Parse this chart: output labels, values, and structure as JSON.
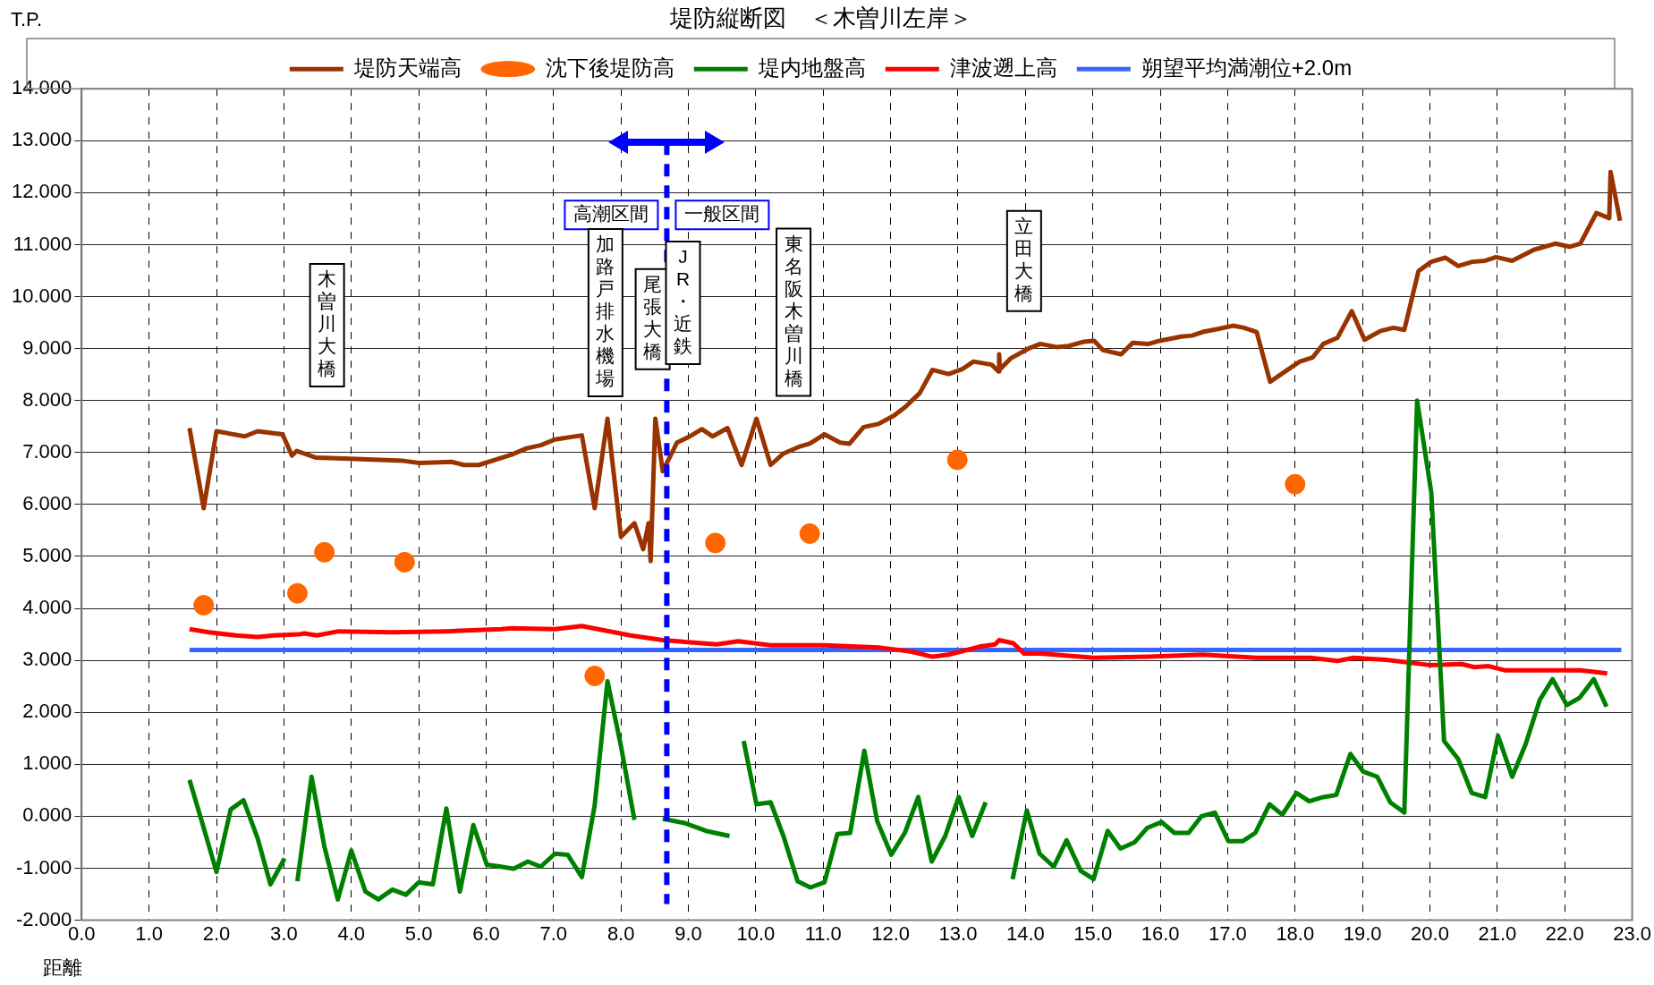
{
  "chart_data": {
    "type": "line",
    "title": "堤防縦断図　＜木曽川左岸＞",
    "xlabel": "距離",
    "ylabel": "T.P.",
    "xlim": [
      0,
      23
    ],
    "ylim": [
      -2,
      14
    ],
    "xticks": [
      {
        "value": 0,
        "label": "0.0"
      },
      {
        "value": 1,
        "label": "1.0"
      },
      {
        "value": 2,
        "label": "2.0"
      },
      {
        "value": 3,
        "label": "3.0"
      },
      {
        "value": 4,
        "label": "4.0"
      },
      {
        "value": 5,
        "label": "5.0"
      },
      {
        "value": 6,
        "label": "6.0"
      },
      {
        "value": 7,
        "label": "7.0"
      },
      {
        "value": 8,
        "label": "8.0"
      },
      {
        "value": 9,
        "label": "9.0"
      },
      {
        "value": 10,
        "label": "10.0"
      },
      {
        "value": 11,
        "label": "11.0"
      },
      {
        "value": 12,
        "label": "12.0"
      },
      {
        "value": 13,
        "label": "13.0"
      },
      {
        "value": 14,
        "label": "14.0"
      },
      {
        "value": 15,
        "label": "15.0"
      },
      {
        "value": 16,
        "label": "16.0"
      },
      {
        "value": 17,
        "label": "17.0"
      },
      {
        "value": 18,
        "label": "18.0"
      },
      {
        "value": 19,
        "label": "19.0"
      },
      {
        "value": 20,
        "label": "20.0"
      },
      {
        "value": 21,
        "label": "21.0"
      },
      {
        "value": 22,
        "label": "22.0"
      },
      {
        "value": 23,
        "label": "23.0"
      }
    ],
    "yticks": [
      {
        "value": -2,
        "label": "-2.000"
      },
      {
        "value": -1,
        "label": "-1.000"
      },
      {
        "value": 0,
        "label": "0.000"
      },
      {
        "value": 1,
        "label": "1.000"
      },
      {
        "value": 2,
        "label": "2.000"
      },
      {
        "value": 3,
        "label": "3.000"
      },
      {
        "value": 4,
        "label": "4.000"
      },
      {
        "value": 5,
        "label": "5.000"
      },
      {
        "value": 6,
        "label": "6.000"
      },
      {
        "value": 7,
        "label": "7.000"
      },
      {
        "value": 8,
        "label": "8.000"
      },
      {
        "value": 9,
        "label": "9.000"
      },
      {
        "value": 10,
        "label": "10.000"
      },
      {
        "value": 11,
        "label": "11.000"
      },
      {
        "value": 12,
        "label": "12.000"
      },
      {
        "value": 13,
        "label": "13.000"
      },
      {
        "value": 14,
        "label": "14.000"
      }
    ],
    "grid": true,
    "legend": "top",
    "series": [
      {
        "name": "堤防天端高",
        "color": "#993300",
        "x": [
          1.6,
          1.81,
          2.0,
          2.42,
          2.61,
          2.98,
          3.12,
          3.19,
          3.48,
          3.97,
          4.77,
          5.01,
          5.49,
          5.67,
          5.89,
          6.38,
          6.6,
          6.81,
          7.02,
          7.42,
          7.61,
          7.8,
          8.0,
          8.2,
          8.33,
          8.41,
          8.44,
          8.51,
          8.62,
          8.83,
          9.02,
          9.2,
          9.36,
          9.58,
          9.79,
          10.01,
          10.22,
          10.41,
          10.64,
          10.8,
          11.02,
          11.25,
          11.39,
          11.6,
          11.82,
          12.05,
          12.22,
          12.43,
          12.62,
          12.86,
          13.07,
          13.23,
          13.5,
          13.6,
          13.61,
          13.62,
          13.78,
          14.06,
          14.22,
          14.46,
          14.64,
          14.86,
          15.02,
          15.15,
          15.42,
          15.59,
          15.83,
          15.99,
          16.31,
          16.47,
          16.63,
          16.87,
          17.08,
          17.24,
          17.43,
          17.63,
          17.83,
          18.07,
          18.26,
          18.42,
          18.63,
          18.84,
          19.03,
          19.27,
          19.46,
          19.62,
          19.83,
          20.02,
          20.23,
          20.42,
          20.63,
          20.82,
          20.98,
          21.22,
          21.54,
          21.86,
          22.07,
          22.23,
          22.47,
          22.66,
          22.68,
          22.82
        ],
        "values": [
          7.47,
          5.93,
          7.41,
          7.31,
          7.41,
          7.35,
          6.94,
          7.03,
          6.9,
          6.88,
          6.84,
          6.8,
          6.82,
          6.76,
          6.76,
          6.96,
          7.08,
          7.14,
          7.25,
          7.33,
          5.93,
          7.65,
          5.38,
          5.64,
          5.14,
          5.64,
          4.91,
          7.65,
          6.64,
          7.19,
          7.31,
          7.45,
          7.31,
          7.47,
          6.76,
          7.65,
          6.76,
          6.98,
          7.11,
          7.17,
          7.35,
          7.19,
          7.17,
          7.49,
          7.55,
          7.71,
          7.88,
          8.14,
          8.59,
          8.51,
          8.61,
          8.75,
          8.69,
          8.56,
          8.89,
          8.6,
          8.81,
          9.01,
          9.09,
          9.03,
          9.05,
          9.13,
          9.15,
          8.97,
          8.89,
          9.11,
          9.09,
          9.15,
          9.23,
          9.25,
          9.32,
          9.38,
          9.44,
          9.4,
          9.32,
          8.36,
          8.54,
          8.75,
          8.83,
          9.09,
          9.21,
          9.72,
          9.17,
          9.34,
          9.4,
          9.36,
          10.49,
          10.67,
          10.75,
          10.59,
          10.67,
          10.69,
          10.76,
          10.69,
          10.9,
          11.02,
          10.96,
          11.02,
          11.61,
          11.51,
          12.4,
          11.46
        ]
      },
      {
        "name": "沈下後堤防高",
        "type": "scatter",
        "marker": "circle",
        "color": "#ff6600",
        "x": [
          1.81,
          3.2,
          3.6,
          4.79,
          7.61,
          9.4,
          10.8,
          12.99,
          18.0
        ],
        "values": [
          4.06,
          4.29,
          5.08,
          4.89,
          2.7,
          5.26,
          5.44,
          6.86,
          6.39
        ]
      },
      {
        "name": "堤内地盤高",
        "color": "#008000",
        "x": [
          1.6,
          1.81,
          2.0,
          2.21,
          2.4,
          2.61,
          2.8,
          3.01,
          3.1,
          3.2,
          3.41,
          3.6,
          3.8,
          4.0,
          4.21,
          4.4,
          4.61,
          4.81,
          5.0,
          5.21,
          5.41,
          5.61,
          5.81,
          6.01,
          6.22,
          6.41,
          6.62,
          6.81,
          7.02,
          7.21,
          7.42,
          7.61,
          7.8,
          8.0,
          8.2,
          8.4,
          8.62,
          8.94,
          9.26,
          9.61,
          9.7,
          9.82,
          10.01,
          10.22,
          10.41,
          10.62,
          10.81,
          11.02,
          11.21,
          11.4,
          11.61,
          11.8,
          12.01,
          12.21,
          12.41,
          12.61,
          12.81,
          13.01,
          13.21,
          13.41,
          13.6,
          13.81,
          14.02,
          14.21,
          14.42,
          14.61,
          14.82,
          15.01,
          15.22,
          15.41,
          15.62,
          15.81,
          16.02,
          16.21,
          16.42,
          16.61,
          16.81,
          17.01,
          17.22,
          17.41,
          17.62,
          17.81,
          18.02,
          18.21,
          18.42,
          18.61,
          18.82,
          19.01,
          19.22,
          19.41,
          19.62,
          19.81,
          20.02,
          20.21,
          20.42,
          20.62,
          20.82,
          21.01,
          21.22,
          21.42,
          21.63,
          21.82,
          22.03,
          22.22,
          22.43,
          22.62
        ],
        "values": [
          0.7,
          -0.22,
          -1.07,
          0.13,
          0.31,
          -0.42,
          -1.31,
          -0.81,
          null,
          -1.25,
          0.76,
          -0.58,
          -1.6,
          -0.66,
          -1.45,
          -1.6,
          -1.41,
          -1.51,
          -1.27,
          -1.31,
          0.15,
          -1.45,
          -0.17,
          -0.93,
          -0.97,
          -1.01,
          -0.87,
          -0.97,
          -0.72,
          -0.74,
          -1.17,
          0.21,
          2.6,
          1.35,
          -0.07,
          null,
          -0.05,
          -0.13,
          -0.28,
          -0.38,
          null,
          1.45,
          0.23,
          0.27,
          -0.38,
          -1.25,
          -1.37,
          -1.27,
          -0.34,
          -0.32,
          1.26,
          -0.09,
          -0.74,
          -0.32,
          0.37,
          -0.87,
          -0.38,
          0.37,
          -0.38,
          0.27,
          null,
          -1.21,
          0.11,
          -0.72,
          -0.97,
          -0.46,
          -1.05,
          -1.21,
          -0.28,
          -0.62,
          -0.5,
          -0.22,
          -0.11,
          -0.32,
          -0.32,
          0.0,
          0.07,
          -0.48,
          -0.48,
          -0.32,
          0.23,
          0.03,
          0.45,
          0.29,
          0.37,
          0.41,
          1.2,
          0.86,
          0.76,
          0.27,
          0.07,
          8.0,
          6.23,
          1.45,
          1.1,
          0.45,
          0.37,
          1.55,
          0.76,
          1.39,
          2.24,
          2.64,
          2.14,
          2.28,
          2.64,
          2.11
        ]
      },
      {
        "name": "津波遡上高",
        "color": "#ff0000",
        "x": [
          1.6,
          1.89,
          2.29,
          2.61,
          2.85,
          3.22,
          3.3,
          3.49,
          3.81,
          4.61,
          5.41,
          6.22,
          6.38,
          7.02,
          7.42,
          8.14,
          8.62,
          9.42,
          9.74,
          10.22,
          11.02,
          11.82,
          12.3,
          12.62,
          12.86,
          13.34,
          13.55,
          13.61,
          13.82,
          13.98,
          14.22,
          15.02,
          15.83,
          16.63,
          17.43,
          18.23,
          18.63,
          18.87,
          19.35,
          19.99,
          20.47,
          20.66,
          20.87,
          21.11,
          21.59,
          22.23,
          22.63
        ],
        "values": [
          3.6,
          3.54,
          3.48,
          3.45,
          3.48,
          3.5,
          3.52,
          3.48,
          3.56,
          3.54,
          3.56,
          3.6,
          3.62,
          3.6,
          3.66,
          3.48,
          3.39,
          3.31,
          3.37,
          3.29,
          3.29,
          3.25,
          3.17,
          3.07,
          3.11,
          3.27,
          3.31,
          3.39,
          3.33,
          3.13,
          3.13,
          3.05,
          3.07,
          3.11,
          3.05,
          3.05,
          2.99,
          3.05,
          3.01,
          2.91,
          2.93,
          2.87,
          2.89,
          2.81,
          2.81,
          2.81,
          2.75
        ]
      },
      {
        "name": "朔望平均満潮位+2.0m",
        "color": "#3366ff",
        "x": [
          1.6,
          22.84
        ],
        "values": [
          3.2,
          3.2
        ]
      }
    ],
    "ref_lines": [
      {
        "axis": "x",
        "value": 8.68,
        "color": "#0000ff",
        "line_style": "dashed"
      }
    ],
    "annotations": [
      "高潮区間",
      "一般区間",
      "木曽川大橋",
      "加路戸排水機場",
      "尾張大橋",
      "JR・近鉄",
      "東名阪木曽川橋",
      "立田大橋"
    ]
  }
}
